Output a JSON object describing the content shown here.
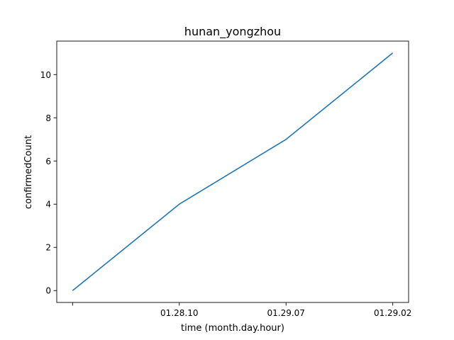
{
  "chart_data": {
    "type": "line",
    "title": "hunan_yongzhou",
    "xlabel": "time (month.day.hour)",
    "ylabel": "confirmedCount",
    "x": [
      "",
      "01.28.10",
      "01.29.07",
      "01.29.02"
    ],
    "series": [
      {
        "values": [
          0,
          4,
          7,
          11
        ],
        "color": "#1f77b4"
      }
    ],
    "yticks": [
      0,
      2,
      4,
      6,
      8,
      10
    ],
    "ylim": [
      -0.55,
      11.55
    ],
    "grid": false,
    "legend": "none"
  }
}
